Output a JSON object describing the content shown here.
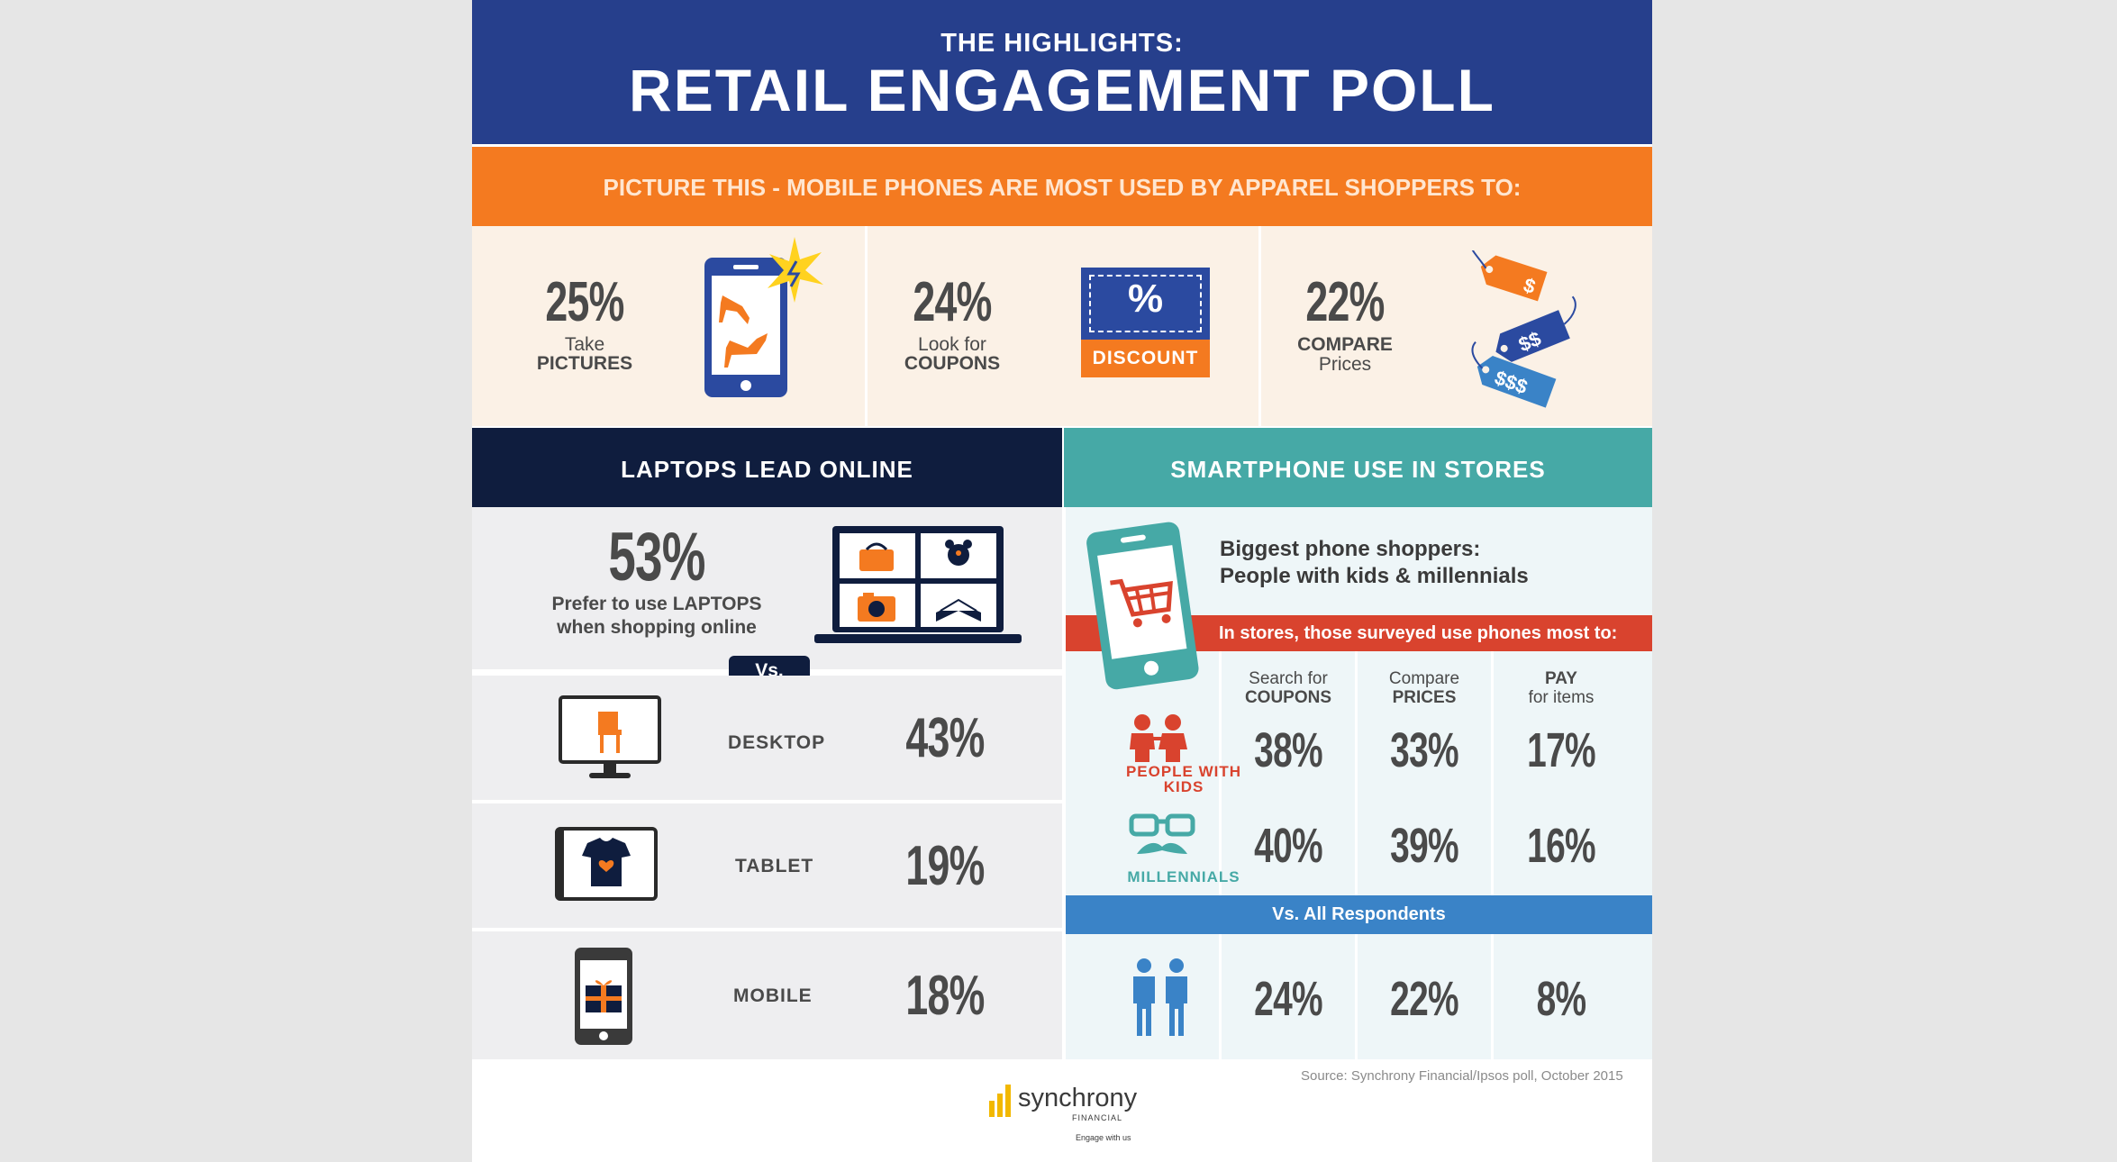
{
  "header": {
    "subtitle": "THE HIGHLIGHTS:",
    "title": "RETAIL ENGAGEMENT POLL"
  },
  "mobile_section": {
    "banner": "PICTURE THIS - MOBILE PHONES ARE MOST USED BY APPAREL SHOPPERS TO:",
    "items": [
      {
        "percent": "25%",
        "line1": "Take",
        "line2": "PICTURES",
        "icon": "phone-camera-icon"
      },
      {
        "percent": "24%",
        "line1": "Look for",
        "line2": "COUPONS",
        "icon": "discount-coupon-icon",
        "coupon_symbol": "%",
        "coupon_text": "DISCOUNT"
      },
      {
        "percent": "22%",
        "line1": "COMPARE",
        "line2": "Prices",
        "icon": "price-tags-icon",
        "tags": [
          "$",
          "$$",
          "$$$"
        ]
      }
    ]
  },
  "laptops": {
    "title": "LAPTOPS LEAD ONLINE",
    "percent": "53%",
    "line1": "Prefer to use LAPTOPS",
    "line2": "when shopping online",
    "vs": "Vs.",
    "rows": [
      {
        "label": "DESKTOP",
        "percent": "43%",
        "icon": "desktop-monitor-icon"
      },
      {
        "label": "TABLET",
        "percent": "19%",
        "icon": "tablet-icon"
      },
      {
        "label": "MOBILE",
        "percent": "18%",
        "icon": "mobile-phone-icon"
      }
    ]
  },
  "smartphone": {
    "title": "SMARTPHONE USE IN STORES",
    "intro_line1": "Biggest phone shoppers:",
    "intro_line2": "People with kids & millennials",
    "band": "In stores, those surveyed use phones most to:",
    "columns": [
      {
        "line1": "Search for",
        "line2": "COUPONS"
      },
      {
        "line1": "Compare",
        "line2": "PRICES"
      },
      {
        "line1": "PAY",
        "line2": "for items"
      }
    ],
    "groups": [
      {
        "label_line1": "PEOPLE WITH",
        "label_line2": "KIDS",
        "values": [
          "38%",
          "33%",
          "17%"
        ]
      },
      {
        "label_line1": "MILLENNIALS",
        "label_line2": "",
        "values": [
          "40%",
          "39%",
          "16%"
        ]
      }
    ],
    "all_band": "Vs. All Respondents",
    "all_values": [
      "24%",
      "22%",
      "8%"
    ]
  },
  "footer": {
    "source": "Source: Synchrony Financial/Ipsos poll, October 2015",
    "brand": "synchrony",
    "brand_sub": "FINANCIAL",
    "tagline": "Engage with us"
  },
  "colors": {
    "navy_blue": "#263f8c",
    "orange": "#f47a20",
    "dark_navy": "#0f1d3e",
    "teal": "#46a9a6",
    "red": "#d9432e",
    "blue": "#3a83c7"
  }
}
